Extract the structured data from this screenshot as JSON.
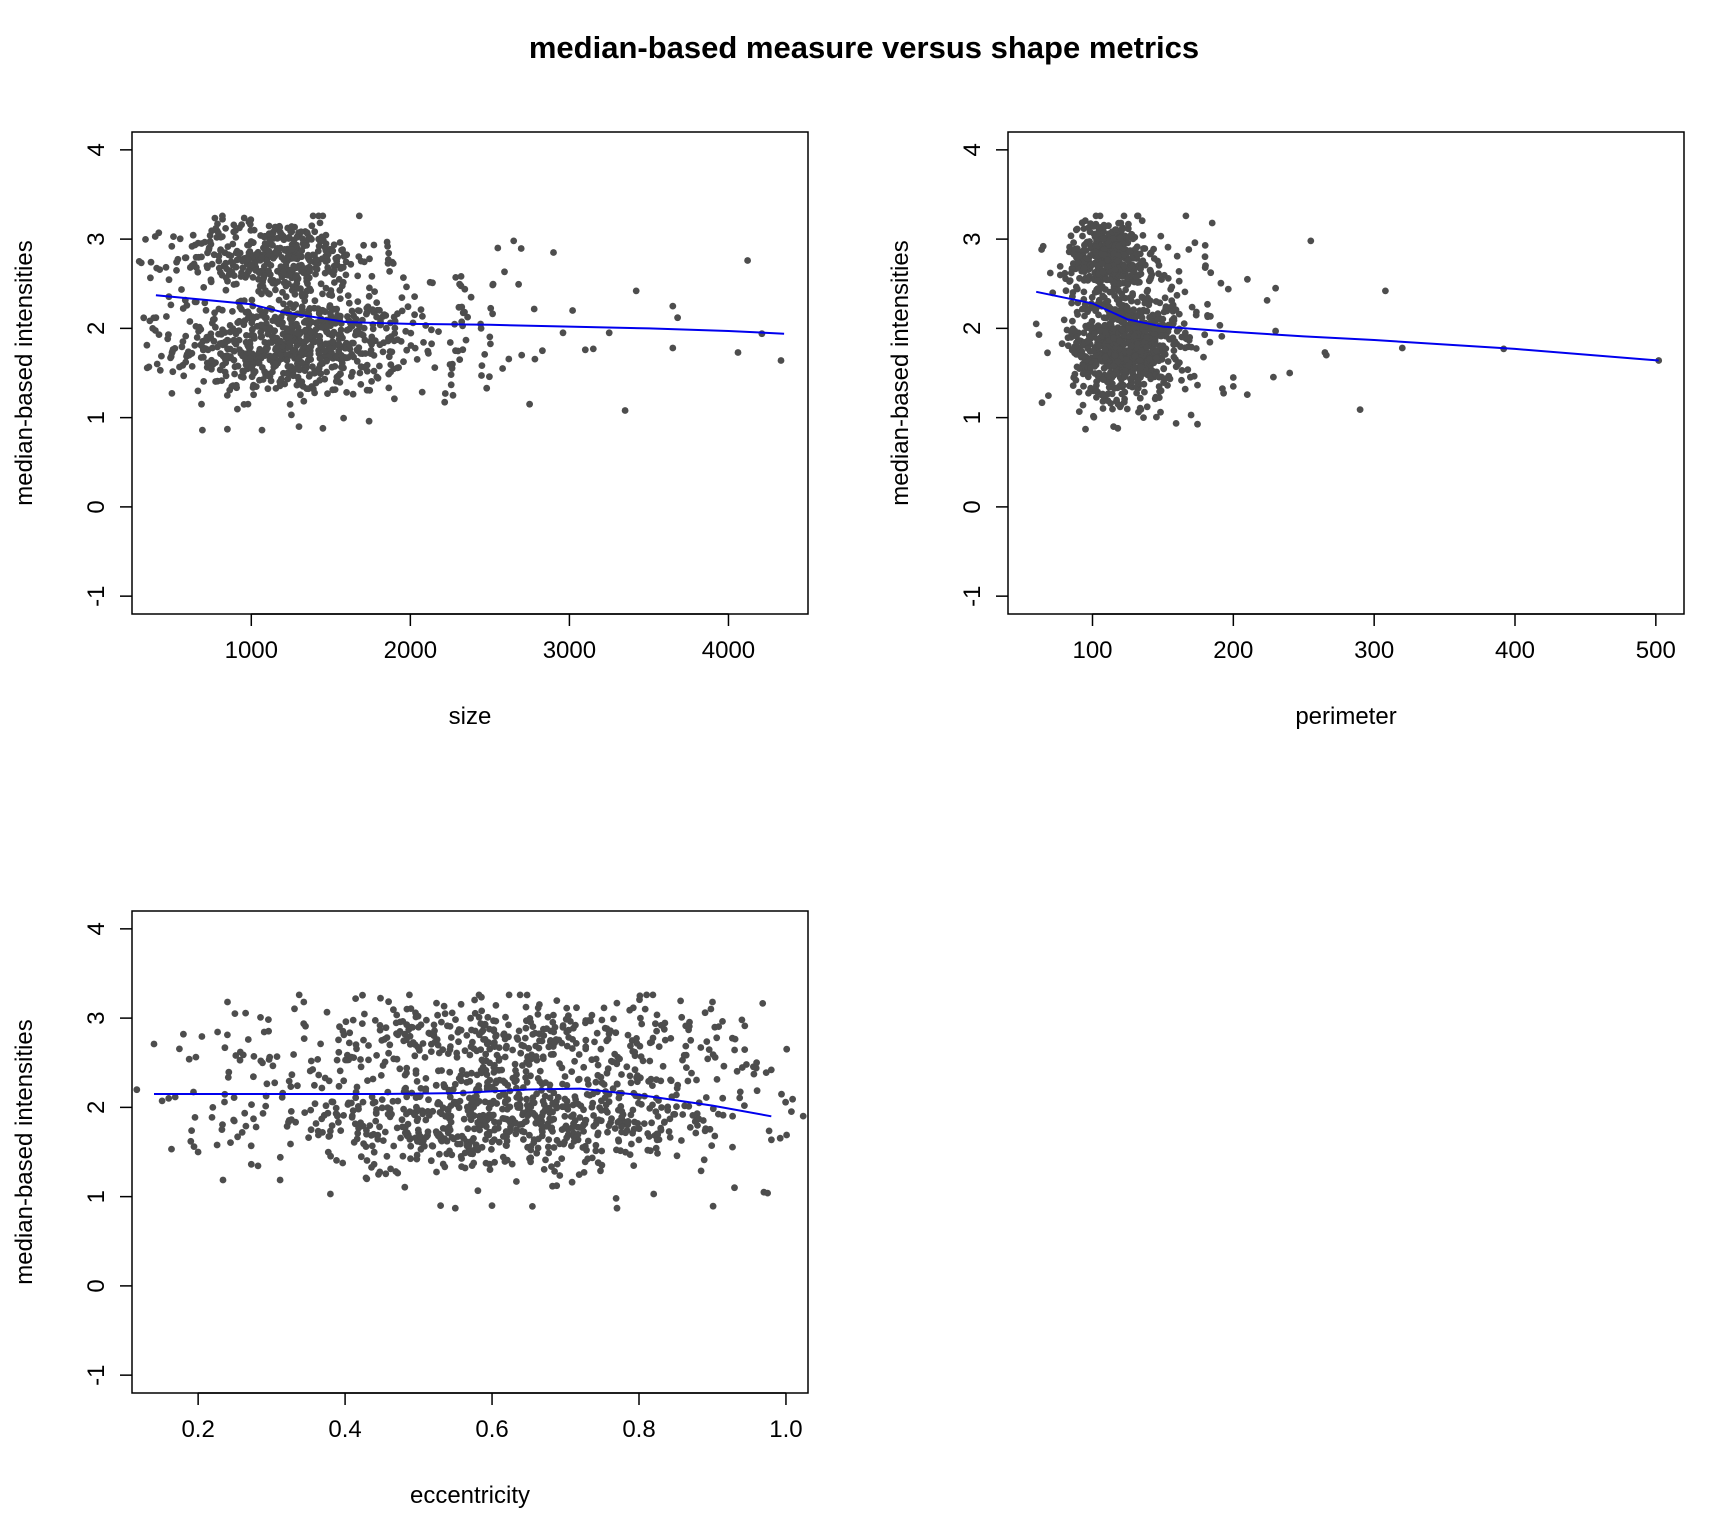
{
  "title": "median-based measure versus shape metrics",
  "colors": {
    "points": "#4d4d4d",
    "smooth": "#0000ee",
    "frame": "#000000"
  },
  "chart_data": [
    {
      "type": "scatter",
      "xlabel": "size",
      "ylabel": "median-based intensities",
      "xlim": [
        250,
        4500
      ],
      "ylim": [
        -1.2,
        4.2
      ],
      "xticks": [
        1000,
        2000,
        3000,
        4000
      ],
      "yticks": [
        -1,
        0,
        1,
        2,
        3,
        4
      ],
      "clusters": [
        {
          "center": [
            1250,
            1.8
          ],
          "spread": [
            360,
            0.28
          ],
          "count": 700
        },
        {
          "center": [
            1150,
            2.78
          ],
          "spread": [
            320,
            0.22
          ],
          "count": 420
        },
        {
          "center": [
            2100,
            2.1
          ],
          "spread": [
            420,
            0.4
          ],
          "count": 90
        }
      ],
      "extra_points": [
        [
          850,
          0.87
        ],
        [
          1300,
          0.9
        ],
        [
          1450,
          0.88
        ],
        [
          2750,
          1.15
        ],
        [
          3350,
          1.08
        ],
        [
          3420,
          2.42
        ],
        [
          4120,
          2.76
        ],
        [
          4210,
          1.94
        ],
        [
          4330,
          1.64
        ],
        [
          4060,
          1.73
        ],
        [
          3650,
          2.25
        ],
        [
          3680,
          2.12
        ],
        [
          3650,
          1.78
        ],
        [
          3250,
          1.95
        ],
        [
          3020,
          2.2
        ],
        [
          2900,
          2.85
        ],
        [
          2960,
          1.95
        ],
        [
          3100,
          1.76
        ],
        [
          3150,
          1.77
        ],
        [
          2650,
          2.98
        ],
        [
          2550,
          2.9
        ],
        [
          2220,
          1.27
        ],
        [
          2480,
          1.33
        ],
        [
          2580,
          1.55
        ],
        [
          2700,
          1.7
        ],
        [
          2830,
          1.75
        ],
        [
          380,
          2.0
        ],
        [
          400,
          2.12
        ],
        [
          420,
          1.93
        ],
        [
          500,
          2.92
        ],
        [
          530,
          2.65
        ]
      ],
      "smooth": {
        "x": [
          400,
          1000,
          1200,
          1600,
          2000,
          2500,
          3000,
          3500,
          4000,
          4350
        ],
        "y": [
          2.37,
          2.27,
          2.18,
          2.07,
          2.05,
          2.04,
          2.02,
          2.0,
          1.97,
          1.94
        ]
      }
    },
    {
      "type": "scatter",
      "xlabel": "perimeter",
      "ylabel": "median-based intensities",
      "xlim": [
        40,
        520
      ],
      "ylim": [
        -1.2,
        4.2
      ],
      "xticks": [
        100,
        200,
        300,
        400,
        500
      ],
      "yticks": [
        -1,
        0,
        1,
        2,
        3,
        4
      ],
      "clusters": [
        {
          "center": [
            122,
            1.8
          ],
          "spread": [
            18,
            0.3
          ],
          "count": 750
        },
        {
          "center": [
            112,
            2.78
          ],
          "spread": [
            15,
            0.22
          ],
          "count": 420
        },
        {
          "center": [
            165,
            2.05
          ],
          "spread": [
            25,
            0.45
          ],
          "count": 80
        }
      ],
      "extra_points": [
        [
          255,
          2.98
        ],
        [
          308,
          2.42
        ],
        [
          320,
          1.78
        ],
        [
          392,
          1.77
        ],
        [
          502,
          1.64
        ],
        [
          290,
          1.09
        ],
        [
          265,
          1.73
        ],
        [
          266,
          1.7
        ],
        [
          240,
          1.5
        ],
        [
          230,
          2.45
        ],
        [
          230,
          1.97
        ],
        [
          210,
          2.55
        ],
        [
          200,
          1.35
        ],
        [
          200,
          1.45
        ],
        [
          95,
          0.87
        ],
        [
          115,
          0.9
        ],
        [
          118,
          0.88
        ],
        [
          60,
          2.05
        ],
        [
          62,
          1.93
        ],
        [
          65,
          2.92
        ],
        [
          70,
          2.62
        ],
        [
          185,
          3.18
        ],
        [
          180,
          2.93
        ],
        [
          170,
          1.03
        ]
      ],
      "smooth": {
        "x": [
          60,
          100,
          125,
          150,
          200,
          250,
          300,
          400,
          502
        ],
        "y": [
          2.41,
          2.28,
          2.1,
          2.02,
          1.96,
          1.91,
          1.87,
          1.77,
          1.64
        ]
      }
    },
    {
      "type": "scatter",
      "xlabel": "eccentricity",
      "ylabel": "median-based intensities",
      "xlim": [
        0.11,
        1.03
      ],
      "ylim": [
        -1.2,
        4.2
      ],
      "xticks": [
        0.2,
        0.4,
        0.6,
        0.8,
        1.0
      ],
      "yticks": [
        -1,
        0,
        1,
        2,
        3,
        4
      ],
      "clusters": [
        {
          "center": [
            0.62,
            1.85
          ],
          "spread": [
            0.17,
            0.28
          ],
          "count": 750
        },
        {
          "center": [
            0.63,
            2.75
          ],
          "spread": [
            0.16,
            0.26
          ],
          "count": 420
        },
        {
          "center": [
            0.35,
            2.1
          ],
          "spread": [
            0.08,
            0.5
          ],
          "count": 60
        }
      ],
      "extra_points": [
        [
          0.14,
          2.71
        ],
        [
          0.18,
          2.82
        ],
        [
          0.2,
          1.5
        ],
        [
          0.19,
          1.62
        ],
        [
          0.24,
          3.18
        ],
        [
          0.25,
          3.05
        ],
        [
          0.38,
          1.03
        ],
        [
          0.53,
          0.9
        ],
        [
          0.55,
          0.87
        ],
        [
          0.6,
          0.9
        ],
        [
          0.77,
          0.87
        ],
        [
          0.82,
          1.03
        ],
        [
          0.93,
          1.1
        ],
        [
          0.97,
          1.05
        ],
        [
          0.975,
          1.04
        ],
        [
          0.98,
          2.42
        ],
        [
          0.96,
          2.5
        ],
        [
          0.9,
          3.18
        ],
        [
          0.94,
          2.98
        ],
        [
          0.16,
          2.1
        ],
        [
          0.22,
          2.0
        ],
        [
          0.26,
          1.72
        ]
      ],
      "smooth": {
        "x": [
          0.14,
          0.3,
          0.45,
          0.55,
          0.65,
          0.72,
          0.8,
          0.9,
          0.98
        ],
        "y": [
          2.15,
          2.15,
          2.15,
          2.16,
          2.2,
          2.21,
          2.14,
          2.02,
          1.9
        ]
      }
    }
  ]
}
